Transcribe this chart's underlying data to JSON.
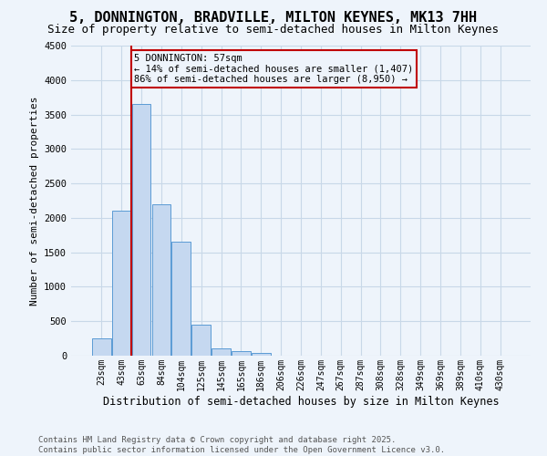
{
  "title": "5, DONNINGTON, BRADVILLE, MILTON KEYNES, MK13 7HH",
  "subtitle": "Size of property relative to semi-detached houses in Milton Keynes",
  "xlabel": "Distribution of semi-detached houses by size in Milton Keynes",
  "ylabel": "Number of semi-detached properties",
  "categories": [
    "23sqm",
    "43sqm",
    "63sqm",
    "84sqm",
    "104sqm",
    "125sqm",
    "145sqm",
    "165sqm",
    "186sqm",
    "206sqm",
    "226sqm",
    "247sqm",
    "267sqm",
    "287sqm",
    "308sqm",
    "328sqm",
    "349sqm",
    "369sqm",
    "389sqm",
    "410sqm",
    "430sqm"
  ],
  "bar_values": [
    250,
    2100,
    3650,
    2200,
    1650,
    450,
    100,
    60,
    40,
    0,
    0,
    0,
    0,
    0,
    0,
    0,
    0,
    0,
    0,
    0,
    0
  ],
  "bar_color": "#c5d8f0",
  "bar_edgecolor": "#5b9bd5",
  "grid_color": "#c8d8e8",
  "background_color": "#eef4fb",
  "vline_x": 1.5,
  "vline_color": "#c00000",
  "annotation_text": "5 DONNINGTON: 57sqm\n← 14% of semi-detached houses are smaller (1,407)\n86% of semi-detached houses are larger (8,950) →",
  "annotation_color": "#c00000",
  "ylim": [
    0,
    4500
  ],
  "footer": "Contains HM Land Registry data © Crown copyright and database right 2025.\nContains public sector information licensed under the Open Government Licence v3.0.",
  "title_fontsize": 11,
  "subtitle_fontsize": 9,
  "xlabel_fontsize": 8.5,
  "ylabel_fontsize": 8,
  "tick_fontsize": 7,
  "annotation_fontsize": 7.5,
  "footer_fontsize": 6.5
}
